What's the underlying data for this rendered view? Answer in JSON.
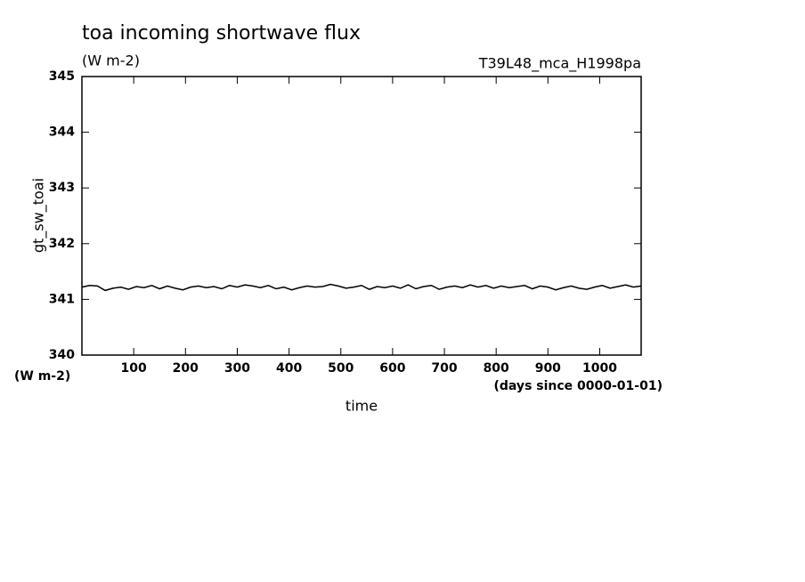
{
  "chart_data": {
    "type": "line",
    "title": "toa incoming shortwave flux",
    "subtitle": "(W m-2)",
    "annotation": "T39L48_mca_H1998pa",
    "y_label": "gt_sw_toai",
    "y_unit": "(W m-2)",
    "x_label": "time",
    "x_unit": "(days since 0000-01-01)",
    "xlim": [
      0,
      1080
    ],
    "ylim": [
      340,
      345
    ],
    "xticks": [
      100,
      200,
      300,
      400,
      500,
      600,
      700,
      800,
      900,
      1000
    ],
    "yticks": [
      340,
      341,
      342,
      343,
      344,
      345
    ],
    "x": [
      0,
      15,
      30,
      45,
      60,
      75,
      90,
      105,
      120,
      135,
      150,
      165,
      180,
      195,
      210,
      225,
      240,
      255,
      270,
      285,
      300,
      315,
      330,
      345,
      360,
      375,
      390,
      405,
      420,
      435,
      450,
      465,
      480,
      495,
      510,
      525,
      540,
      555,
      570,
      585,
      600,
      615,
      630,
      645,
      660,
      675,
      690,
      705,
      720,
      735,
      750,
      765,
      780,
      795,
      810,
      825,
      840,
      855,
      870,
      885,
      900,
      915,
      930,
      945,
      960,
      975,
      990,
      1005,
      1020,
      1035,
      1050,
      1065,
      1080
    ],
    "series": [
      {
        "color": "#000000",
        "values": [
          341.22,
          341.25,
          341.24,
          341.16,
          341.2,
          341.22,
          341.18,
          341.23,
          341.21,
          341.25,
          341.19,
          341.24,
          341.2,
          341.17,
          341.22,
          341.24,
          341.21,
          341.23,
          341.19,
          341.25,
          341.22,
          341.26,
          341.24,
          341.21,
          341.25,
          341.19,
          341.22,
          341.17,
          341.21,
          341.24,
          341.22,
          341.23,
          341.27,
          341.24,
          341.2,
          341.22,
          341.25,
          341.18,
          341.23,
          341.21,
          341.24,
          341.2,
          341.26,
          341.19,
          341.23,
          341.25,
          341.18,
          341.22,
          341.24,
          341.21,
          341.26,
          341.22,
          341.25,
          341.2,
          341.24,
          341.21,
          341.23,
          341.25,
          341.19,
          341.24,
          341.22,
          341.17,
          341.21,
          341.24,
          341.2,
          341.18,
          341.22,
          341.25,
          341.2,
          341.23,
          341.26,
          341.22,
          341.24
        ]
      }
    ]
  }
}
